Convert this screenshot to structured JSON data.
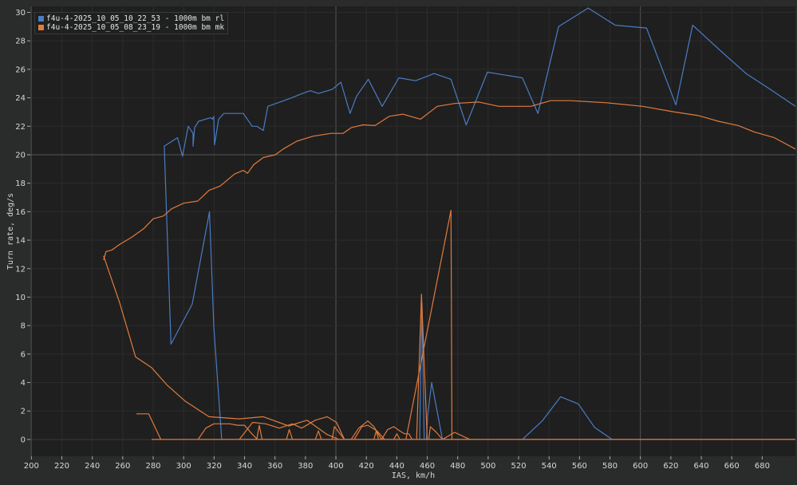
{
  "chart_data": {
    "type": "line",
    "title": "",
    "xlabel": "IAS, km/h",
    "ylabel": "Turn rate, deg/s",
    "xlim": [
      199.3,
      701.8
    ],
    "ylim": [
      -1.18,
      30.42
    ],
    "xticks": [
      200,
      220,
      240,
      260,
      280,
      300,
      320,
      340,
      360,
      380,
      400,
      420,
      440,
      460,
      480,
      500,
      520,
      540,
      560,
      580,
      600,
      620,
      640,
      660,
      680
    ],
    "yticks": [
      0,
      2,
      4,
      6,
      8,
      10,
      12,
      14,
      16,
      18,
      20,
      22,
      24,
      26,
      28,
      30
    ],
    "major_x": [
      400,
      600
    ],
    "major_y": [
      20
    ],
    "grid": true,
    "legend_position": "top-left",
    "series": [
      {
        "name": "f4u-4-2025_10_05_10_22_53 - 1000m bm rl",
        "color": "#4a7cc4",
        "segments": [
          [
            [
              325,
              0
            ],
            [
              319.8,
              7.9
            ],
            [
              317,
              16.0
            ],
            [
              305.6,
              9.5
            ],
            [
              291.7,
              6.7
            ],
            [
              287.3,
              20.6
            ],
            [
              296,
              21.2
            ],
            [
              299.3,
              19.9
            ],
            [
              303,
              22.0
            ],
            [
              306.2,
              21.5
            ],
            [
              306.2,
              20.6
            ],
            [
              307.2,
              21.9
            ],
            [
              309.8,
              22.35
            ],
            [
              317.7,
              22.6
            ],
            [
              319,
              22.5
            ],
            [
              319.8,
              22.7
            ],
            [
              320.3,
              20.7
            ],
            [
              323,
              22.5
            ],
            [
              326.4,
              22.9
            ],
            [
              339.2,
              22.9
            ],
            [
              345,
              22.0
            ],
            [
              348,
              22.0
            ],
            [
              352.3,
              21.7
            ],
            [
              355.3,
              23.4
            ],
            [
              365.8,
              23.8
            ],
            [
              371,
              24.0
            ],
            [
              378,
              24.3
            ],
            [
              383.2,
              24.5
            ],
            [
              388.5,
              24.3
            ],
            [
              397.7,
              24.6
            ],
            [
              403.3,
              25.1
            ],
            [
              409.3,
              22.9
            ],
            [
              413.5,
              24.1
            ],
            [
              421.3,
              25.3
            ],
            [
              430.4,
              23.4
            ],
            [
              441.4,
              25.4
            ],
            [
              452.4,
              25.2
            ],
            [
              464.5,
              25.7
            ],
            [
              475.6,
              25.3
            ],
            [
              485.6,
              22.1
            ],
            [
              499.5,
              25.8
            ],
            [
              522.5,
              25.4
            ],
            [
              532.7,
              22.9
            ],
            [
              546.3,
              29.0
            ],
            [
              565.7,
              30.3
            ],
            [
              583.5,
              29.1
            ],
            [
              604,
              28.9
            ],
            [
              623.3,
              23.5
            ],
            [
              634.3,
              29.1
            ],
            [
              653.7,
              27.2
            ],
            [
              669.4,
              25.7
            ],
            [
              685.2,
              24.6
            ],
            [
              701.8,
              23.4
            ]
          ],
          [
            [
              325,
              0
            ],
            [
              701.8,
              0
            ]
          ],
          [
            [
              455,
              0
            ],
            [
              456.5,
              9.6
            ],
            [
              458,
              0
            ]
          ],
          [
            [
              459.5,
              0
            ],
            [
              460.3,
              1.7
            ],
            [
              462.9,
              4.0
            ],
            [
              470,
              0
            ]
          ],
          [
            [
              522.5,
              0
            ],
            [
              535.5,
              1.3
            ],
            [
              547.6,
              3.0
            ],
            [
              559.2,
              2.5
            ],
            [
              569.9,
              0.85
            ],
            [
              581.4,
              0
            ]
          ]
        ]
      },
      {
        "name": "f4u-4-2025_10_05_08_23_19 - 1000m bm mk",
        "color": "#e07b3c",
        "segments": [
          [
            [
              247.4,
              12.6
            ],
            [
              249,
              13.2
            ],
            [
              252.7,
              13.3
            ],
            [
              258,
              13.7
            ],
            [
              265.8,
              14.2
            ],
            [
              273.7,
              14.8
            ],
            [
              280,
              15.5
            ],
            [
              286.8,
              15.7
            ],
            [
              292,
              16.2
            ],
            [
              300,
              16.6
            ],
            [
              309.3,
              16.75
            ],
            [
              316.7,
              17.5
            ],
            [
              324,
              17.8
            ],
            [
              333.5,
              18.65
            ],
            [
              339.2,
              18.9
            ],
            [
              342,
              18.7
            ],
            [
              346,
              19.3
            ],
            [
              352.3,
              19.8
            ],
            [
              360.2,
              20.0
            ],
            [
              365.4,
              20.4
            ],
            [
              374.3,
              20.95
            ],
            [
              384.8,
              21.3
            ],
            [
              396.8,
              21.5
            ],
            [
              404.7,
              21.5
            ],
            [
              410,
              21.9
            ],
            [
              417.8,
              22.1
            ],
            [
              425.7,
              22.05
            ],
            [
              435.1,
              22.7
            ],
            [
              444,
              22.85
            ],
            [
              455.6,
              22.5
            ],
            [
              466.6,
              23.4
            ],
            [
              478.1,
              23.6
            ],
            [
              493.9,
              23.7
            ],
            [
              507,
              23.4
            ],
            [
              528,
              23.4
            ],
            [
              541,
              23.8
            ],
            [
              554.2,
              23.8
            ],
            [
              577.8,
              23.65
            ],
            [
              601.4,
              23.4
            ],
            [
              622.4,
              23.0
            ],
            [
              638.1,
              22.75
            ],
            [
              651.2,
              22.35
            ],
            [
              664.3,
              22.05
            ],
            [
              674.8,
              21.6
            ],
            [
              687.9,
              21.2
            ],
            [
              701.8,
              20.4
            ]
          ],
          [
            [
              247.4,
              12.9
            ],
            [
              258,
              9.6
            ],
            [
              268.4,
              5.8
            ],
            [
              278.9,
              5.05
            ],
            [
              289.3,
              3.8
            ],
            [
              300.9,
              2.7
            ],
            [
              316.6,
              1.6
            ],
            [
              336.5,
              1.45
            ],
            [
              352.3,
              1.6
            ],
            [
              369,
              0.95
            ],
            [
              381,
              1.35
            ],
            [
              394.2,
              0.35
            ],
            [
              402,
              0
            ]
          ],
          [
            [
              269,
              1.8
            ],
            [
              277,
              1.8
            ],
            [
              285,
              0
            ]
          ],
          [
            [
              279,
              0
            ],
            [
              701.8,
              0
            ]
          ],
          [
            [
              309.5,
              0
            ],
            [
              314.6,
              0.8
            ],
            [
              319.8,
              1.1
            ],
            [
              330.3,
              1.1
            ],
            [
              335.5,
              1.0
            ],
            [
              340,
              1.0
            ],
            [
              344.4,
              0.45
            ],
            [
              348.5,
              0
            ]
          ],
          [
            [
              336.6,
              0
            ],
            [
              345.3,
              1.2
            ],
            [
              353.9,
              1.1
            ],
            [
              362.8,
              0.8
            ],
            [
              371.5,
              1.1
            ],
            [
              377.5,
              0.8
            ],
            [
              386.4,
              1.35
            ],
            [
              394.2,
              1.6
            ],
            [
              400.4,
              1.2
            ],
            [
              405.6,
              0
            ]
          ],
          [
            [
              348,
              0
            ],
            [
              349.7,
              1.0
            ],
            [
              351.5,
              0
            ]
          ],
          [
            [
              367.5,
              0
            ],
            [
              369.4,
              0.7
            ],
            [
              371.5,
              0
            ]
          ],
          [
            [
              386.5,
              0
            ],
            [
              388.5,
              0.6
            ],
            [
              390.5,
              0
            ]
          ],
          [
            [
              397.5,
              0
            ],
            [
              399,
              0.9
            ],
            [
              400.5,
              0.7
            ],
            [
              405.6,
              0
            ]
          ],
          [
            [
              406,
              0
            ],
            [
              410,
              0
            ],
            [
              415,
              0.8
            ],
            [
              421,
              1.3
            ],
            [
              425,
              0.9
            ],
            [
              430,
              0
            ]
          ],
          [
            [
              412,
              0
            ],
            [
              417,
              0.9
            ],
            [
              421,
              1.0
            ],
            [
              427,
              0.6
            ],
            [
              432,
              0
            ]
          ],
          [
            [
              425,
              0
            ],
            [
              426.5,
              0.6
            ],
            [
              428,
              0
            ]
          ],
          [
            [
              430,
              0
            ],
            [
              434,
              0.7
            ],
            [
              438,
              0.9
            ],
            [
              442,
              0.6
            ],
            [
              445,
              0.4
            ],
            [
              448,
              0.4
            ],
            [
              450,
              0
            ]
          ],
          [
            [
              438,
              0
            ],
            [
              440,
              0.4
            ],
            [
              442,
              0
            ]
          ],
          [
            [
              453,
              0
            ],
            [
              456.2,
              10.2
            ],
            [
              460,
              0
            ]
          ],
          [
            [
              446,
              0
            ],
            [
              475.6,
              16.1
            ],
            [
              476.2,
              0
            ]
          ],
          [
            [
              461,
              0
            ],
            [
              462,
              0.9
            ],
            [
              466,
              0.5
            ],
            [
              470,
              0
            ]
          ],
          [
            [
              470,
              0
            ],
            [
              478,
              0.5
            ],
            [
              488,
              0
            ]
          ]
        ]
      }
    ]
  }
}
